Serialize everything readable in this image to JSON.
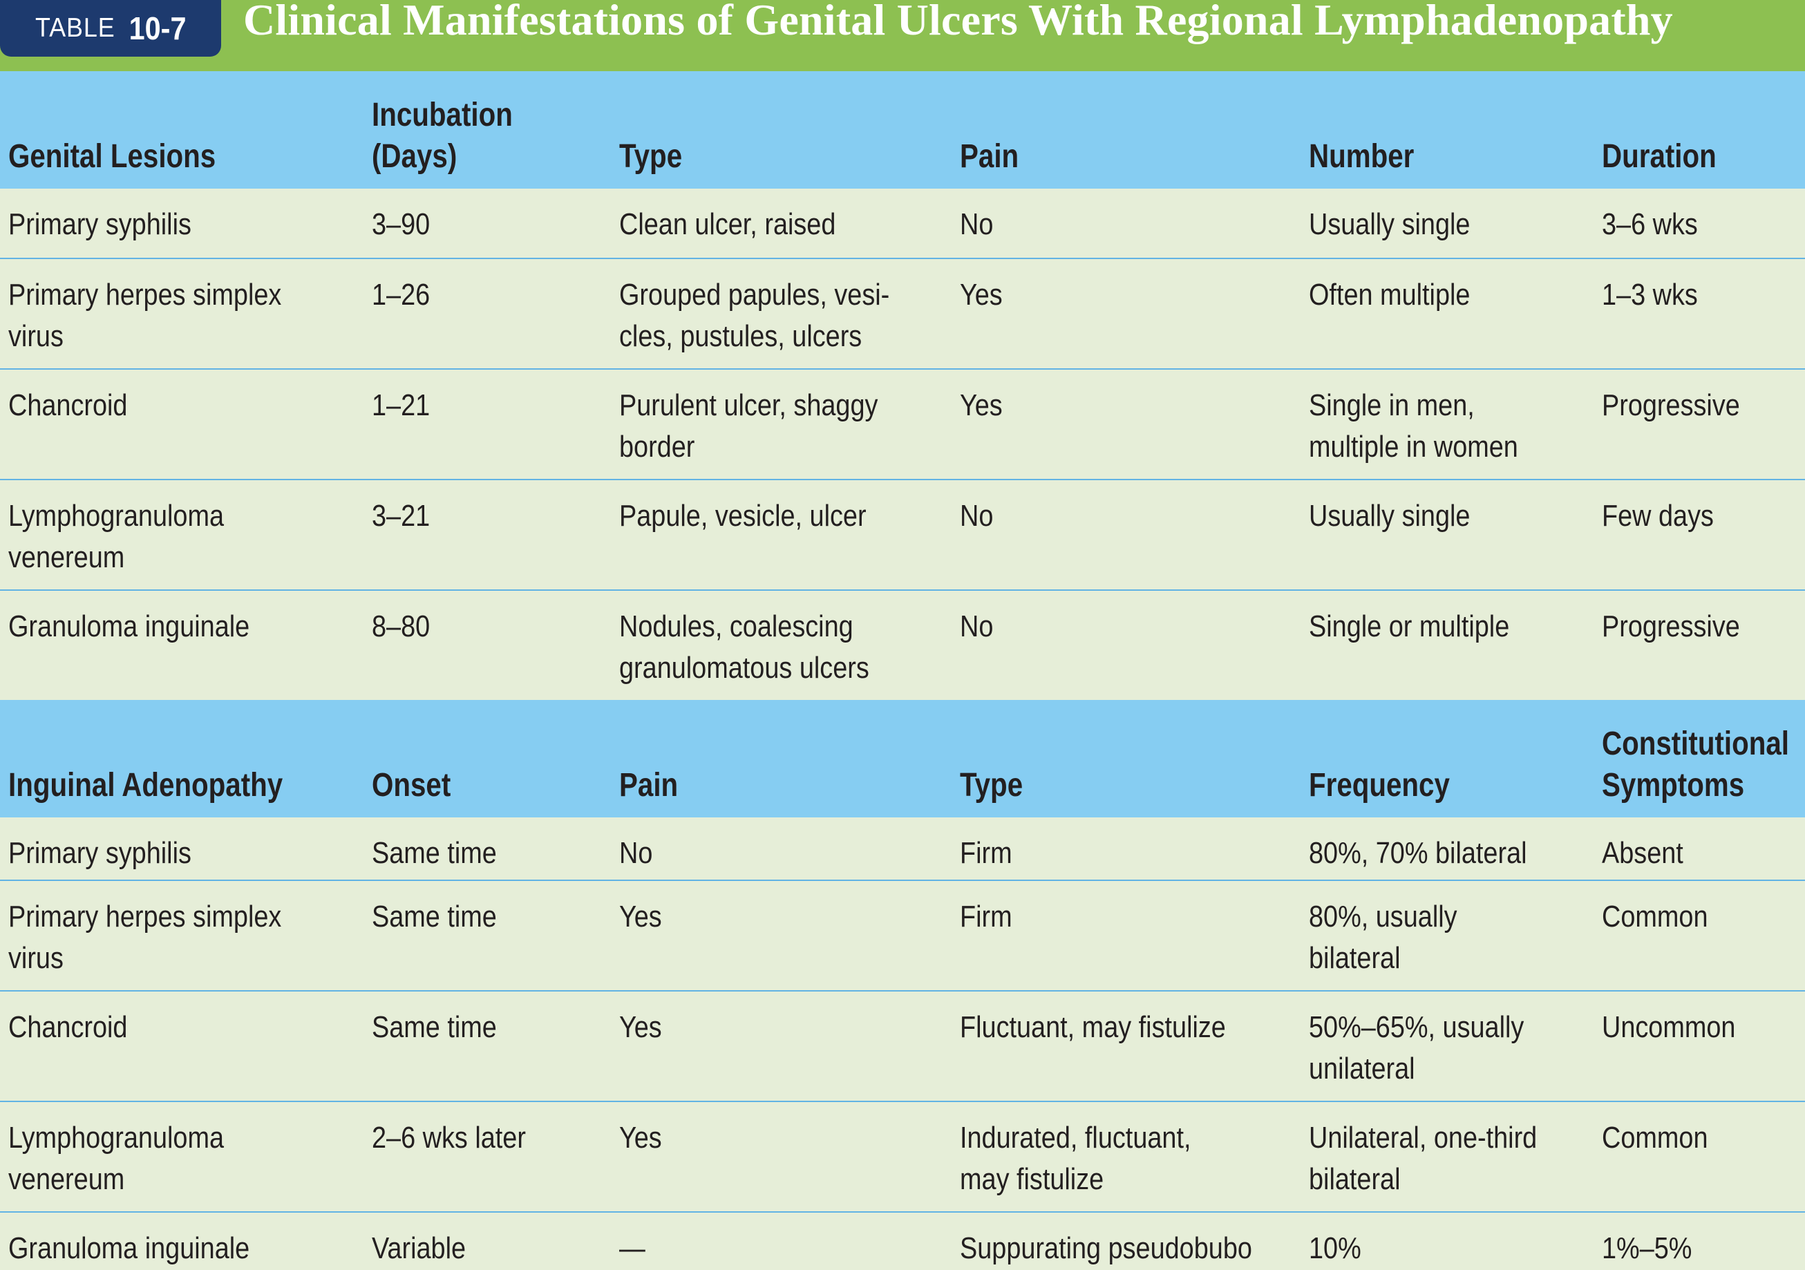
{
  "title_bar": {
    "tag_word": "TABLE",
    "tag_number": "10-7",
    "title": "Clinical Manifestations of Genital Ulcers With Regional Lymphadenopathy"
  },
  "colors": {
    "title_green": "#8dc051",
    "tag_navy": "#1d3a6e",
    "header_blue": "#86cdf2",
    "row_bg": "#e6eed8",
    "rule_blue": "#62b3e4"
  },
  "lesions": {
    "headers": [
      [
        "Genital Lesions"
      ],
      [
        "Incubation",
        "(Days)"
      ],
      [
        "Type"
      ],
      [
        "Pain"
      ],
      [
        "Number"
      ],
      [
        "Duration"
      ]
    ],
    "rows": [
      [
        [
          "Primary syphilis"
        ],
        [
          "3–90"
        ],
        [
          "Clean ulcer, raised"
        ],
        [
          "No"
        ],
        [
          "Usually single"
        ],
        [
          "3–6 wks"
        ]
      ],
      [
        [
          "Primary herpes simplex",
          "virus"
        ],
        [
          "1–26"
        ],
        [
          "Grouped papules, vesi-",
          "cles, pustules, ulcers"
        ],
        [
          "Yes"
        ],
        [
          "Often multiple"
        ],
        [
          "1–3 wks"
        ]
      ],
      [
        [
          "Chancroid"
        ],
        [
          "1–21"
        ],
        [
          "Purulent ulcer, shaggy",
          "border"
        ],
        [
          "Yes"
        ],
        [
          "Single in men,",
          "multiple in women"
        ],
        [
          "Progressive"
        ]
      ],
      [
        [
          "Lymphogranuloma",
          "venereum"
        ],
        [
          "3–21"
        ],
        [
          "Papule, vesicle, ulcer"
        ],
        [
          "No"
        ],
        [
          "Usually single"
        ],
        [
          "Few days"
        ]
      ],
      [
        [
          "Granuloma inguinale"
        ],
        [
          "8–80"
        ],
        [
          "Nodules, coalescing",
          "granulomatous ulcers"
        ],
        [
          "No"
        ],
        [
          "Single or multiple"
        ],
        [
          "Progressive"
        ]
      ]
    ]
  },
  "adenopathy": {
    "headers": [
      [
        "Inguinal Adenopathy"
      ],
      [
        "Onset"
      ],
      [
        "Pain"
      ],
      [
        "Type"
      ],
      [
        "Frequency"
      ],
      [
        "Constitutional",
        "Symptoms"
      ]
    ],
    "rows": [
      [
        [
          "Primary syphilis"
        ],
        [
          "Same time"
        ],
        [
          "No"
        ],
        [
          "Firm"
        ],
        [
          "80%, 70% bilateral"
        ],
        [
          "Absent"
        ]
      ],
      [
        [
          "Primary herpes simplex",
          "virus"
        ],
        [
          "Same time"
        ],
        [
          "Yes"
        ],
        [
          "Firm"
        ],
        [
          "80%, usually",
          "bilateral"
        ],
        [
          "Common"
        ]
      ],
      [
        [
          "Chancroid"
        ],
        [
          "Same time"
        ],
        [
          "Yes"
        ],
        [
          "Fluctuant, may fistulize"
        ],
        [
          "50%–65%, usually",
          "unilateral"
        ],
        [
          "Uncommon"
        ]
      ],
      [
        [
          "Lymphogranuloma",
          "venereum"
        ],
        [
          "2–6 wks later"
        ],
        [
          "Yes"
        ],
        [
          "Indurated, fluctuant,",
          "may fistulize"
        ],
        [
          "Unilateral, one-third",
          "bilateral"
        ],
        [
          "Common"
        ]
      ],
      [
        [
          "Granuloma inguinale"
        ],
        [
          "Variable"
        ],
        [
          "—"
        ],
        [
          "Suppurating pseudobubo"
        ],
        [
          "10%"
        ],
        [
          "1%–5%"
        ]
      ]
    ]
  }
}
